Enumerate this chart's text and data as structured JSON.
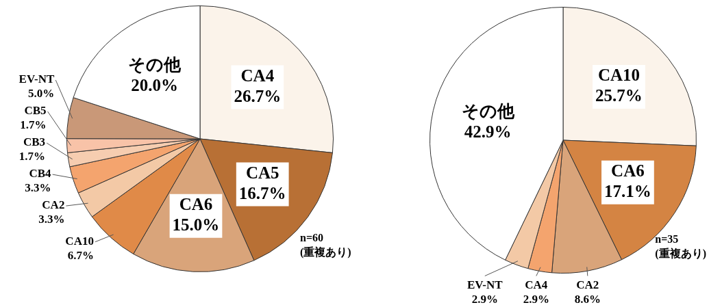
{
  "chart_data": [
    {
      "type": "pie",
      "categories": [
        "CA4",
        "CA5",
        "CA6",
        "CA10",
        "CA2",
        "CB4",
        "CB3",
        "CB5",
        "EV-NT",
        "その他"
      ],
      "values": [
        26.7,
        16.7,
        15.0,
        6.7,
        3.3,
        3.3,
        1.7,
        1.7,
        5.0,
        20.0
      ],
      "value_labels": [
        "26.7%",
        "16.7%",
        "15.0%",
        "6.7%",
        "3.3%",
        "3.3%",
        "1.7%",
        "1.7%",
        "5.0%",
        "20.0%"
      ],
      "colors": [
        "#fbf3ea",
        "#b87035",
        "#d9a47a",
        "#e08a48",
        "#f3c9a6",
        "#f4a46e",
        "#f6cdb0",
        "#f8c3a8",
        "#c99878",
        "#ffffff"
      ],
      "annotations": [
        "n=60",
        "(重複あり)"
      ],
      "legend": false
    },
    {
      "type": "pie",
      "categories": [
        "CA10",
        "CA6",
        "CA2",
        "CA4",
        "EV-NT",
        "その他"
      ],
      "values": [
        25.7,
        17.1,
        8.6,
        2.9,
        2.9,
        42.9
      ],
      "value_labels": [
        "25.7%",
        "17.1%",
        "8.6%",
        "2.9%",
        "2.9%",
        "42.9%"
      ],
      "colors": [
        "#fbf3ea",
        "#d48443",
        "#d9a47a",
        "#f4a46e",
        "#f3c9a6",
        "#ffffff"
      ],
      "annotations": [
        "n=35",
        "(重複あり)"
      ],
      "legend": false
    }
  ]
}
